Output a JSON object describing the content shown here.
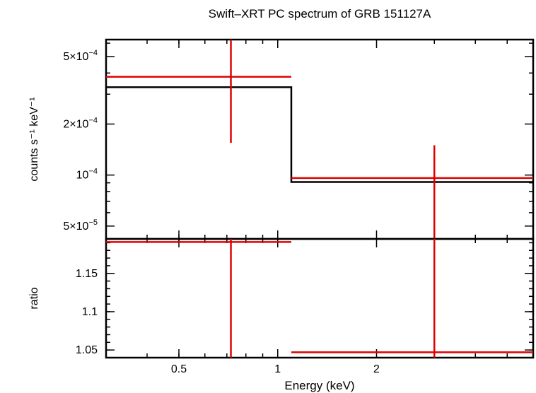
{
  "chart_data": {
    "title": "Swift–XRT PC spectrum of GRB 151127A",
    "xlabel": "Energy (keV)",
    "colors": {
      "data": "#e00000",
      "model": "#000000"
    },
    "x_scale": "log",
    "xlim": [
      0.3,
      6.0
    ],
    "x_ticks": [
      {
        "value": 0.5,
        "label": "0.5"
      },
      {
        "value": 1,
        "label": "1"
      },
      {
        "value": 2,
        "label": "2"
      }
    ],
    "panels": [
      {
        "id": "spectrum",
        "type": "line",
        "ylabel": "counts s⁻¹ keV⁻¹",
        "y_scale": "log",
        "ylim": [
          4.2e-05,
          0.00063
        ],
        "y_ticks": [
          {
            "value": 0.0005,
            "base": "5×10",
            "exp": "−4"
          },
          {
            "value": 0.0002,
            "base": "2×10",
            "exp": "−4"
          },
          {
            "value": 0.0001,
            "base": "10",
            "exp": "−4"
          },
          {
            "value": 5e-05,
            "base": "5×10",
            "exp": "−5"
          }
        ],
        "model": [
          {
            "x0": 0.3,
            "x1": 1.1,
            "y": 0.00033
          },
          {
            "x0": 1.1,
            "x1": 6.0,
            "y": 9.1e-05
          }
        ],
        "data": [
          {
            "x0": 0.3,
            "x1": 1.1,
            "xc": 0.72,
            "y": 0.00038,
            "y_lo": 0.000155,
            "y_hi": 0.00063
          },
          {
            "x0": 1.1,
            "x1": 6.0,
            "xc": 3.0,
            "y": 9.6e-05,
            "y_lo": 3.9e-05,
            "y_hi": 0.00015
          }
        ]
      },
      {
        "id": "ratio",
        "type": "line",
        "ylabel": "ratio",
        "y_scale": "linear",
        "ylim": [
          1.04,
          1.195
        ],
        "y_ticks": [
          {
            "value": 1.15,
            "label": "1.15"
          },
          {
            "value": 1.1,
            "label": "1.1"
          },
          {
            "value": 1.05,
            "label": "1.05"
          }
        ],
        "data": [
          {
            "x0": 0.3,
            "x1": 1.1,
            "xc": 0.72,
            "y": 1.191,
            "y_lo": 1.04,
            "y_hi": 1.195
          },
          {
            "x0": 1.1,
            "x1": 6.0,
            "xc": 3.0,
            "y": 1.047,
            "y_lo": 1.04,
            "y_hi": 1.195
          }
        ]
      }
    ]
  }
}
